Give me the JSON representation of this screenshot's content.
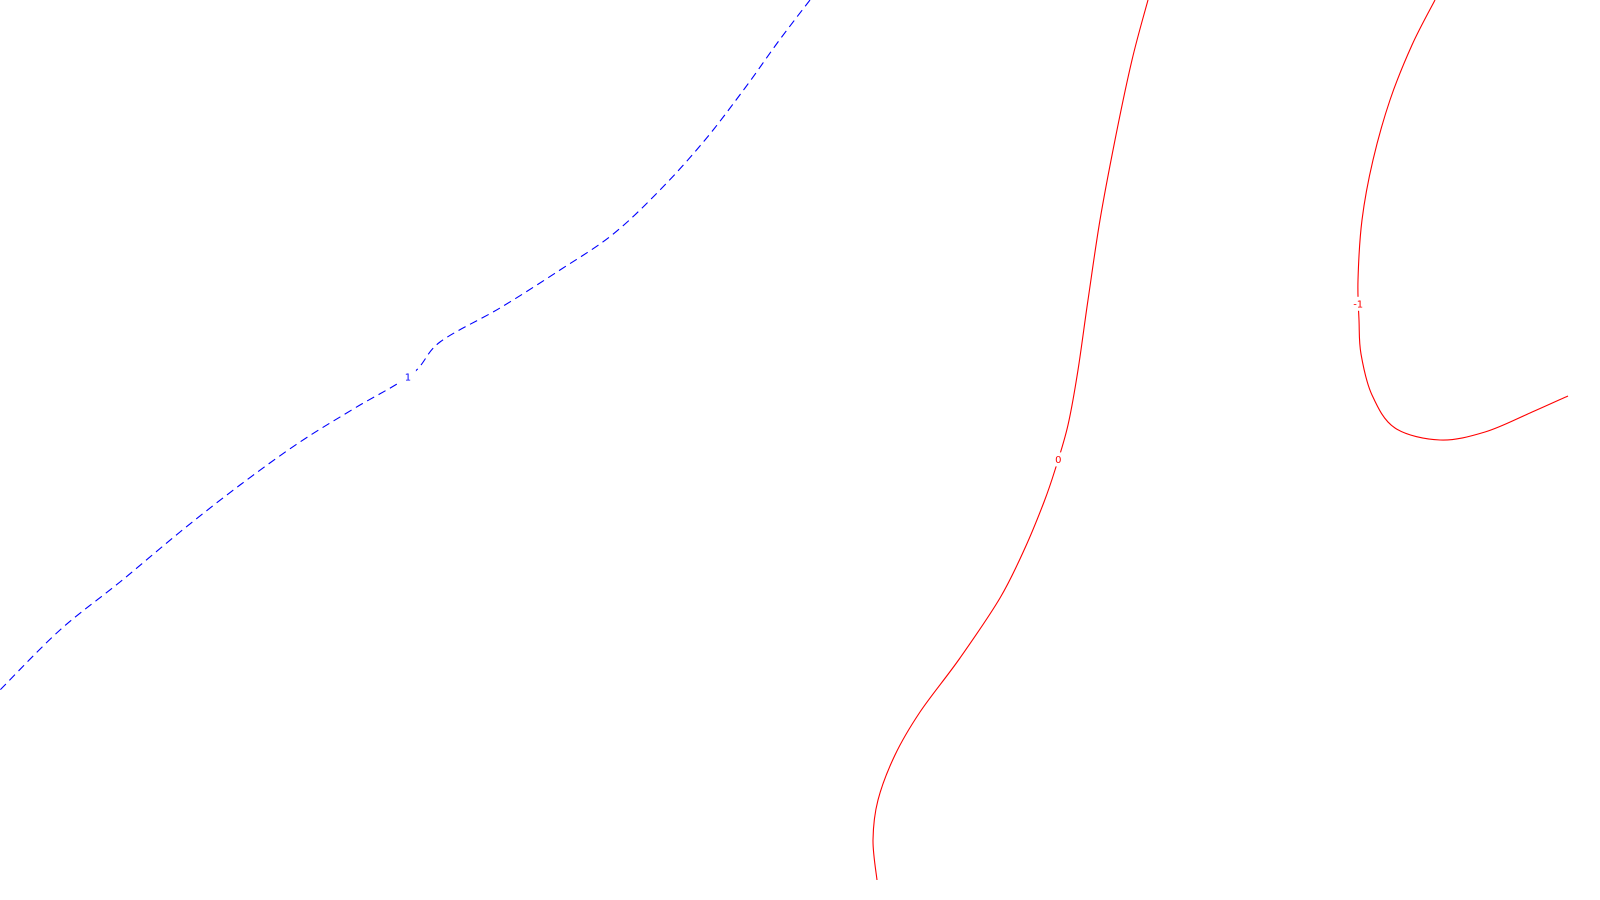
{
  "chart_data": {
    "type": "contour",
    "grid": false,
    "legend": "none",
    "contours": [
      {
        "level_label": "1",
        "color": "#0000ff",
        "style": "dashed",
        "label_at": 0.52,
        "points": [
          [
            810,
            0
          ],
          [
            778,
            42
          ],
          [
            745,
            88
          ],
          [
            705,
            140
          ],
          [
            660,
            190
          ],
          [
            612,
            235
          ],
          [
            560,
            270
          ],
          [
            500,
            308
          ],
          [
            440,
            342
          ],
          [
            412,
            374
          ],
          [
            355,
            408
          ],
          [
            300,
            442
          ],
          [
            240,
            485
          ],
          [
            180,
            532
          ],
          [
            120,
            582
          ],
          [
            60,
            630
          ],
          [
            0,
            690
          ]
        ]
      },
      {
        "level_label": "0",
        "color": "#ff0000",
        "style": "solid",
        "label_at": 0.5,
        "points": [
          [
            1148,
            0
          ],
          [
            1132,
            60
          ],
          [
            1115,
            140
          ],
          [
            1100,
            220
          ],
          [
            1088,
            300
          ],
          [
            1078,
            370
          ],
          [
            1068,
            425
          ],
          [
            1055,
            470
          ],
          [
            1044,
            502
          ],
          [
            1025,
            548
          ],
          [
            1000,
            598
          ],
          [
            960,
            658
          ],
          [
            920,
            712
          ],
          [
            895,
            755
          ],
          [
            878,
            800
          ],
          [
            873,
            840
          ],
          [
            877,
            880
          ]
        ]
      },
      {
        "level_label": "-1",
        "color": "#ff0000",
        "style": "solid",
        "label_at": 0.5,
        "points": [
          [
            1435,
            0
          ],
          [
            1412,
            45
          ],
          [
            1390,
            100
          ],
          [
            1373,
            160
          ],
          [
            1362,
            220
          ],
          [
            1358,
            280
          ],
          [
            1359,
            320
          ],
          [
            1361,
            354
          ],
          [
            1372,
            395
          ],
          [
            1395,
            428
          ],
          [
            1440,
            440
          ],
          [
            1485,
            432
          ],
          [
            1530,
            413
          ],
          [
            1568,
            396
          ]
        ]
      }
    ]
  }
}
